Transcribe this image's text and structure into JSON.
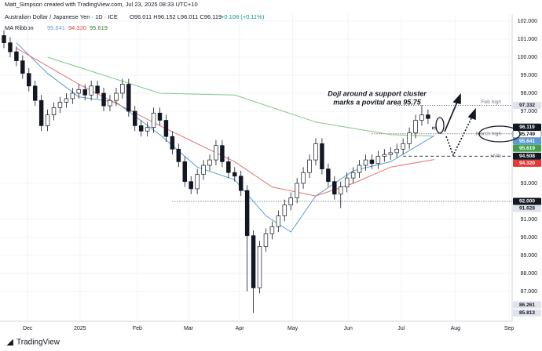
{
  "header": {
    "credit": "Matt_Simpson created with TradingView.com, Jul 23, 2025 08:33 UTC+10",
    "symbol": "Australian Dollar / Japanese Yen · 1D · ICE",
    "ohlc": "O96.011 H96.152 L96.011 C96.119",
    "change": "+0.108 (+0.11%)",
    "ma_title": "MA Ribbon",
    "ma_values": [
      "95.641",
      "94.320",
      "95.619"
    ]
  },
  "chart_data": {
    "type": "candlestick",
    "annotation": [
      "Doji around a support cluster",
      "marks a povital area 95.75"
    ],
    "xlim": [
      -0.63,
      81.49
    ],
    "xticks": [
      {
        "value": 3.8,
        "label": "Dec"
      },
      {
        "value": 12.2,
        "label": "2025"
      },
      {
        "value": 21.4,
        "label": "Feb"
      },
      {
        "value": 29.6,
        "label": "Mar"
      },
      {
        "value": 37.8,
        "label": "Apr"
      },
      {
        "value": 46.3,
        "label": "May"
      },
      {
        "value": 55.2,
        "label": "Jun"
      },
      {
        "value": 63.7,
        "label": "Jul"
      },
      {
        "value": 72.4,
        "label": "Aug"
      },
      {
        "value": 81.0,
        "label": "Sep"
      }
    ],
    "ylim": [
      85.35,
      102.39
    ],
    "yticks": [
      {
        "value": 102,
        "label": "102.000"
      },
      {
        "value": 101,
        "label": "101.000"
      },
      {
        "value": 100,
        "label": "100.000"
      },
      {
        "value": 99,
        "label": "99.000"
      },
      {
        "value": 98,
        "label": "98.000"
      },
      {
        "value": 97,
        "label": "97.000"
      },
      {
        "value": 93,
        "label": "93.000"
      },
      {
        "value": 91,
        "label": "91.000"
      },
      {
        "value": 90,
        "label": "90.000"
      },
      {
        "value": 89,
        "label": "89.000"
      },
      {
        "value": 88,
        "label": "88.000"
      },
      {
        "value": 87,
        "label": "87.000"
      }
    ],
    "up_color": "#ffffff",
    "down_color": "#131722",
    "open": [
      101.2,
      100.8,
      100.3,
      99.8,
      99.1,
      98.4,
      97.6,
      96.2,
      96.8,
      97.2,
      97.5,
      97.7,
      98.0,
      98.2,
      97.9,
      98.4,
      98.0,
      97.3,
      97.6,
      98.0,
      98.5,
      97.0,
      96.2,
      95.9,
      96.1,
      96.9,
      96.5,
      95.6,
      94.9,
      94.2,
      93.1,
      92.7,
      93.5,
      94.0,
      94.3,
      95.1,
      94.2,
      93.6,
      93.4,
      92.6,
      90.1,
      87.2,
      89.5,
      90.2,
      90.6,
      91.2,
      91.8,
      92.2,
      93.0,
      93.6,
      94.3,
      95.2,
      93.8,
      93.1,
      92.4,
      92.8,
      93.3,
      93.6,
      94.0,
      94.3,
      94.1,
      94.5,
      94.6,
      94.7,
      94.9,
      95.2,
      95.8,
      96.5,
      96.8,
      96.011
    ],
    "high": [
      101.5,
      101.1,
      100.6,
      100.1,
      99.4,
      98.7,
      97.9,
      97.1,
      97.5,
      97.8,
      98.0,
      98.3,
      98.5,
      98.5,
      98.7,
      98.7,
      98.3,
      97.9,
      98.3,
      98.8,
      98.8,
      97.3,
      96.5,
      96.4,
      97.2,
      97.2,
      96.8,
      95.9,
      95.2,
      94.5,
      93.4,
      93.8,
      94.3,
      94.6,
      95.4,
      95.4,
      94.5,
      93.9,
      93.7,
      92.9,
      90.4,
      89.8,
      90.5,
      90.9,
      91.5,
      92.1,
      92.5,
      93.3,
      93.9,
      94.6,
      95.5,
      95.5,
      94.1,
      93.4,
      93.1,
      93.6,
      93.9,
      94.3,
      94.6,
      94.6,
      94.8,
      94.9,
      95.0,
      95.2,
      95.5,
      96.1,
      96.8,
      97.332,
      97.1,
      96.152
    ],
    "low": [
      100.5,
      100.0,
      99.5,
      98.8,
      98.1,
      97.3,
      95.9,
      95.9,
      96.5,
      96.9,
      97.2,
      97.4,
      97.7,
      97.6,
      97.6,
      97.7,
      97.0,
      97.0,
      97.3,
      97.7,
      96.7,
      95.9,
      95.6,
      95.6,
      95.8,
      96.2,
      95.3,
      94.6,
      93.9,
      92.8,
      92.4,
      92.4,
      93.2,
      93.7,
      94.0,
      93.9,
      93.3,
      93.1,
      92.3,
      87.0,
      85.813,
      86.9,
      89.2,
      89.9,
      90.3,
      90.9,
      91.5,
      91.9,
      92.7,
      93.3,
      94.0,
      93.5,
      92.8,
      92.1,
      91.628,
      92.5,
      93.0,
      93.3,
      93.7,
      93.8,
      93.8,
      94.2,
      94.3,
      94.4,
      94.6,
      94.9,
      95.5,
      96.2,
      96.3,
      96.011
    ],
    "close": [
      100.8,
      100.3,
      99.8,
      99.1,
      98.4,
      97.6,
      96.2,
      96.8,
      97.2,
      97.5,
      97.7,
      98.0,
      98.2,
      97.9,
      98.4,
      98.0,
      97.3,
      97.6,
      98.0,
      98.5,
      97.0,
      96.2,
      95.9,
      96.1,
      96.9,
      96.5,
      95.6,
      94.9,
      94.2,
      93.1,
      92.7,
      93.5,
      94.0,
      94.3,
      95.1,
      94.2,
      93.6,
      93.4,
      92.6,
      90.1,
      87.2,
      89.5,
      90.2,
      90.6,
      91.2,
      91.8,
      92.2,
      93.0,
      93.6,
      94.3,
      95.2,
      93.8,
      93.1,
      92.4,
      92.8,
      93.3,
      93.6,
      94.0,
      94.3,
      94.1,
      94.5,
      94.6,
      94.7,
      94.9,
      95.2,
      95.8,
      96.5,
      96.8,
      96.6,
      96.119
    ],
    "series": [
      {
        "color": "#5b9bd5",
        "x": [
          2,
          7,
          12,
          18,
          25,
          31,
          37,
          42,
          46,
          50,
          56,
          62,
          69
        ],
        "values": [
          100.8,
          99.1,
          97.8,
          97.5,
          95.7,
          93.9,
          93.2,
          91.2,
          90.3,
          92.3,
          93.7,
          94.2,
          95.641
        ]
      },
      {
        "color": "#e57373",
        "x": [
          2,
          12,
          25,
          37,
          43,
          50,
          56,
          62,
          69
        ],
        "values": [
          100.5,
          98.5,
          96.2,
          94.2,
          92.8,
          92.3,
          93.0,
          93.9,
          94.32
        ]
      },
      {
        "color": "#81c784",
        "x": [
          7,
          25,
          37,
          50,
          62,
          69
        ],
        "values": [
          100.0,
          98.0,
          97.9,
          96.4,
          95.7,
          95.619
        ]
      }
    ],
    "levels": [
      {
        "value": 97.332,
        "label": "Feb high",
        "from": 63,
        "style": "dotted"
      },
      {
        "value": 95.749,
        "label": "March high",
        "from": 59,
        "style": "dotted"
      },
      {
        "value": 94.508,
        "label": "HVN",
        "from": 64,
        "style": "dashed"
      },
      {
        "value": 92,
        "from": 27,
        "style": "dotted"
      }
    ],
    "price_tags": [
      {
        "value": 97.332,
        "color": "#e0e3eb",
        "text_color": "#131722"
      },
      {
        "value": 96.119,
        "color": "#131722",
        "text_color": "#ffffff"
      },
      {
        "value": 95.749,
        "color": "#ffffff",
        "text_color": "#131722"
      },
      {
        "value": 95.641,
        "color": "#5b9bd5",
        "text_color": "#ffffff"
      },
      {
        "value": 95.619,
        "color": "#43a047",
        "text_color": "#ffffff"
      },
      {
        "value": 94.508,
        "color": "#131722",
        "text_color": "#ffffff"
      },
      {
        "value": {
          "value": 94.32,
          "label": "94.320"
        },
        "color": "#e53935",
        "text_color": "#ffffff"
      },
      {
        "value": {
          "value": 92,
          "label": "92.000"
        },
        "color": "#131722",
        "text_color": "#ffffff"
      },
      {
        "value": 91.628,
        "color": "#e0e3eb",
        "text_color": "#131722"
      },
      {
        "value": 86.261,
        "color": "#e0e3eb",
        "text_color": "#131722"
      },
      {
        "value": 85.813,
        "color": "#e0e3eb",
        "text_color": "#131722"
      }
    ]
  },
  "footer": {
    "brand": "TradingView"
  }
}
